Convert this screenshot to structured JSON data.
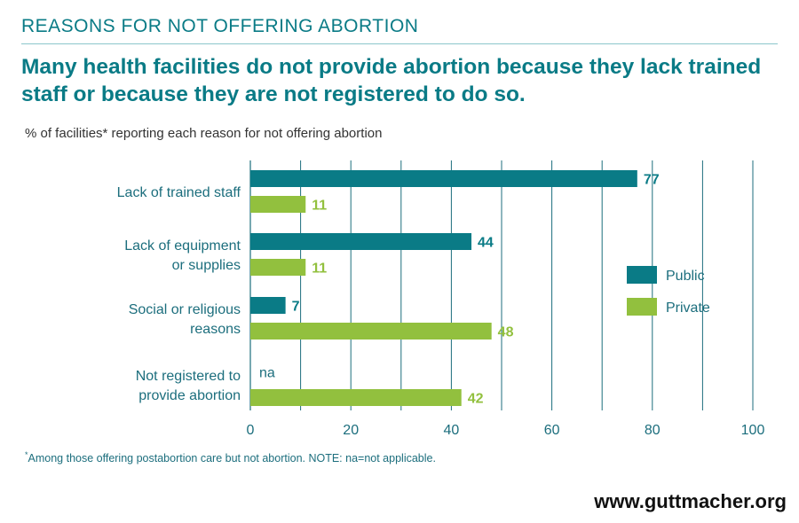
{
  "header": {
    "kicker": "REASONS FOR NOT OFFERING ABORTION",
    "headline": "Many health facilities do not provide abortion because they lack trained staff or because they are not registered to do so."
  },
  "chart_data": {
    "type": "bar",
    "orientation": "horizontal",
    "subtitle": "% of facilities* reporting each reason for not offering abortion",
    "categories": [
      [
        "Lack of trained staff"
      ],
      [
        "Lack of equipment",
        "or supplies"
      ],
      [
        "Social or religious",
        "reasons"
      ],
      [
        "Not registered to",
        "provide abortion"
      ]
    ],
    "series": [
      {
        "name": "Public",
        "color": "#0a7b86",
        "values": [
          77,
          44,
          7,
          null
        ],
        "labels": [
          "77",
          "44",
          "7",
          "na"
        ]
      },
      {
        "name": "Private",
        "color": "#92c03e",
        "values": [
          11,
          11,
          48,
          42
        ],
        "labels": [
          "11",
          "11",
          "48",
          "42"
        ]
      }
    ],
    "xlim": [
      0,
      100
    ],
    "xticks": [
      0,
      20,
      40,
      60,
      80,
      100
    ],
    "grid": true,
    "legend_position": "right"
  },
  "footnote": {
    "marker": "*",
    "text": "Among those offering postabortion care but not abortion. NOTE: na=not applicable."
  },
  "source_url": "www.guttmacher.org"
}
